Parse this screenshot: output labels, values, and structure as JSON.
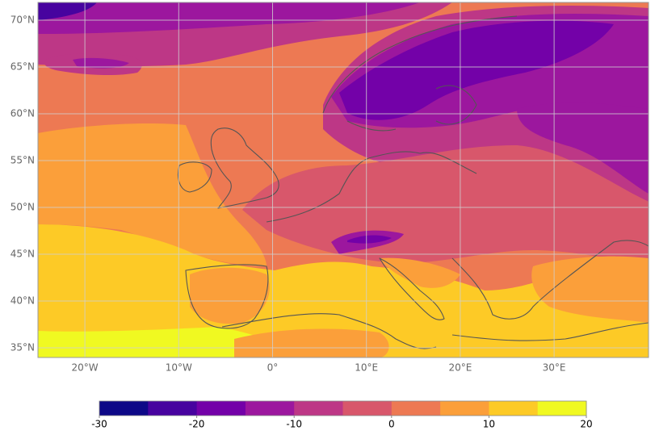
{
  "map": {
    "lon_ticks": [
      {
        "value": -20,
        "label": "20°W"
      },
      {
        "value": -10,
        "label": "10°W"
      },
      {
        "value": 0,
        "label": "0°"
      },
      {
        "value": 10,
        "label": "10°E"
      },
      {
        "value": 20,
        "label": "20°E"
      },
      {
        "value": 30,
        "label": "30°E"
      }
    ],
    "lat_ticks": [
      {
        "value": 70,
        "label": "70°N"
      },
      {
        "value": 65,
        "label": "65°N"
      },
      {
        "value": 60,
        "label": "60°N"
      },
      {
        "value": 55,
        "label": "55°N"
      },
      {
        "value": 50,
        "label": "50°N"
      },
      {
        "value": 45,
        "label": "45°N"
      },
      {
        "value": 40,
        "label": "40°N"
      },
      {
        "value": 35,
        "label": "35°N"
      }
    ],
    "colorbar": {
      "ticks": [
        -30,
        -20,
        -10,
        0,
        10,
        20
      ],
      "colors": [
        "#0d0887",
        "#47039f",
        "#7301a8",
        "#9c179e",
        "#bd3786",
        "#d8576b",
        "#ed7953",
        "#fb9f3a",
        "#fdca26",
        "#f0f921"
      ]
    }
  }
}
